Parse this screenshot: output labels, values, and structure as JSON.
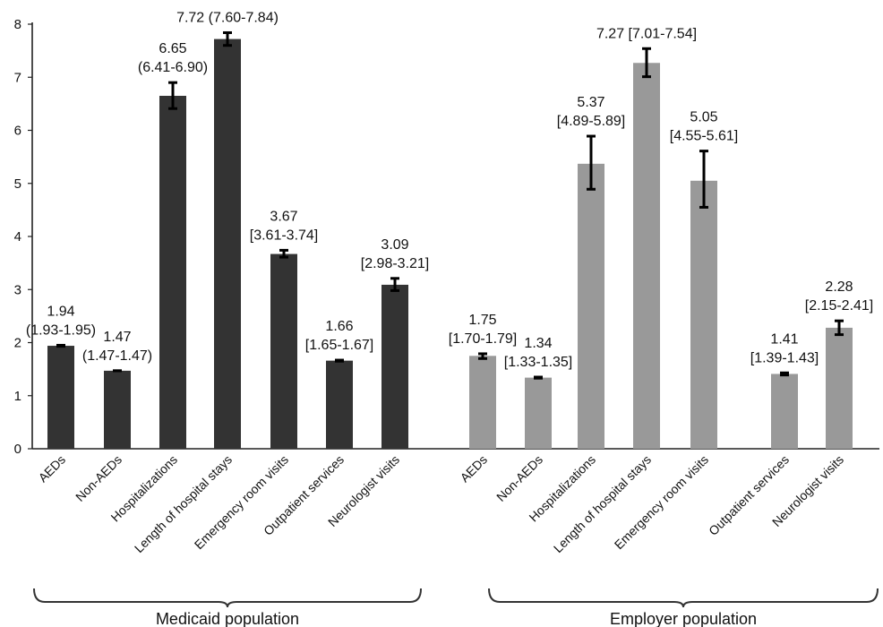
{
  "chart_data": {
    "type": "bar",
    "ylim": [
      0,
      8
    ],
    "yticks": [
      0,
      1,
      2,
      3,
      4,
      5,
      6,
      7,
      8
    ],
    "grid": false,
    "groups": [
      {
        "name": "Medicaid population",
        "color": "#333333",
        "categories": [
          "AEDs",
          "Non-AEDs",
          "Hospitalizations",
          "Length of hospital stays",
          "Emergency room visits",
          "Outpatient services",
          "Neurologist visits"
        ],
        "values": [
          1.94,
          1.47,
          6.65,
          7.72,
          3.67,
          1.66,
          3.09
        ],
        "ci_low": [
          1.93,
          1.47,
          6.41,
          7.6,
          3.61,
          1.65,
          2.98
        ],
        "ci_high": [
          1.95,
          1.47,
          6.9,
          7.84,
          3.74,
          1.67,
          3.21
        ],
        "labels": [
          [
            "1.94",
            "(1.93-1.95)"
          ],
          [
            "1.47",
            "(1.47-1.47)"
          ],
          [
            "6.65",
            "(6.41-6.90)"
          ],
          [
            "7.72 (7.60-7.84)"
          ],
          [
            "3.67",
            "[3.61-3.74]"
          ],
          [
            "1.66",
            "[1.65-1.67]"
          ],
          [
            "3.09",
            "[2.98-3.21]"
          ]
        ]
      },
      {
        "name": "Employer population",
        "color": "#999999",
        "categories": [
          "AEDs",
          "Non-AEDs",
          "Hospitalizations",
          "Length of hospital stays",
          "Emergency room visits",
          "Outpatient services",
          "Neurologist visits"
        ],
        "values": [
          1.75,
          1.34,
          5.37,
          7.27,
          5.05,
          1.41,
          2.28
        ],
        "ci_low": [
          1.7,
          1.33,
          4.89,
          7.01,
          4.55,
          1.39,
          2.15
        ],
        "ci_high": [
          1.79,
          1.35,
          5.89,
          7.54,
          5.61,
          1.43,
          2.41
        ],
        "labels": [
          [
            "1.75",
            "[1.70-1.79]"
          ],
          [
            "1.34",
            "[1.33-1.35]"
          ],
          [
            "5.37",
            "[4.89-5.89]"
          ],
          [
            "7.27 [7.01-7.54]"
          ],
          [
            "5.05",
            "[4.55-5.61]"
          ],
          [
            "1.41",
            "[1.39-1.43]"
          ],
          [
            "2.28",
            "[2.15-2.41]"
          ]
        ]
      }
    ]
  }
}
